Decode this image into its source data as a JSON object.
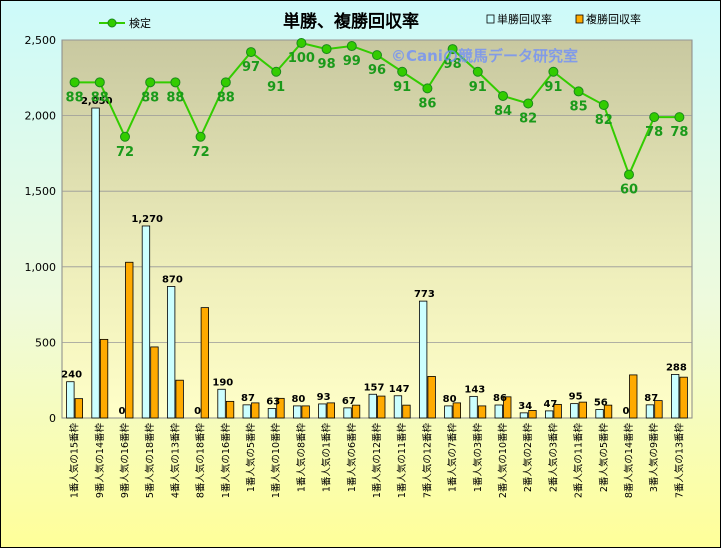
{
  "chart_data": {
    "type": "bar",
    "title": "単勝、複勝回収率",
    "watermark": "©Caniの競馬データ研究室",
    "ylim": [
      0,
      2500
    ],
    "yticks": [
      "0",
      "500",
      "1,000",
      "1,500",
      "2,000",
      "2,500"
    ],
    "ytick_values": [
      0,
      500,
      1000,
      1500,
      2000,
      2500
    ],
    "grid": true,
    "legend_position": "top",
    "categories": [
      "1番人気の15番枠",
      "9番人気の14番枠",
      "9番人気の16番枠",
      "5番人気の18番枠",
      "4番人気の13番枠",
      "8番人気の18番枠",
      "1番人気の16番枠",
      "1番人気の5番枠",
      "1番人気の10番枠",
      "1番人気の8番枠",
      "1番人気の1番枠",
      "1番人気の6番枠",
      "1番人気の12番枠",
      "1番人気の11番枠",
      "7番人気の12番枠",
      "1番人気の7番枠",
      "1番人気の3番枠",
      "2番人気の10番枠",
      "2番人気の2番枠",
      "2番人気の3番枠",
      "2番人気の11番枠",
      "2番人気の5番枠",
      "8番人気の14番枠",
      "3番人気の9番枠",
      "7番人気の13番枠"
    ],
    "series": [
      {
        "name": "単勝回収率",
        "kind": "bar",
        "color": "#ccffff",
        "values": [
          240,
          2050,
          0,
          1270,
          870,
          0,
          190,
          87,
          63,
          80,
          93,
          67,
          157,
          147,
          773,
          80,
          143,
          86,
          34,
          47,
          95,
          56,
          0,
          87,
          288
        ],
        "labels": [
          "240",
          "2,050",
          "0",
          "1,270",
          "870",
          "0",
          "190",
          "87",
          "63",
          "80",
          "93",
          "67",
          "157",
          "147",
          "773",
          "80",
          "143",
          "86",
          "34",
          "47",
          "95",
          "56",
          "0",
          "87",
          "288"
        ]
      },
      {
        "name": "複勝回収率",
        "kind": "bar",
        "color": "#ffaa00",
        "values": [
          128,
          520,
          1030,
          470,
          250,
          730,
          110,
          100,
          130,
          80,
          100,
          85,
          145,
          85,
          275,
          100,
          80,
          140,
          50,
          90,
          105,
          85,
          285,
          115,
          270
        ]
      },
      {
        "name": "検定",
        "kind": "line",
        "color": "#33cc00",
        "values": [
          88,
          88,
          72,
          88,
          88,
          72,
          88,
          97,
          91,
          100,
          98,
          99,
          96,
          91,
          86,
          98,
          91,
          84,
          82,
          91,
          85,
          82,
          60,
          78,
          78
        ],
        "plot_values": [
          2220,
          2220,
          1860,
          2220,
          2220,
          1860,
          2220,
          2420,
          2290,
          2480,
          2440,
          2460,
          2400,
          2290,
          2180,
          2440,
          2290,
          2130,
          2080,
          2290,
          2160,
          2070,
          1610,
          1990,
          1990
        ]
      }
    ]
  }
}
